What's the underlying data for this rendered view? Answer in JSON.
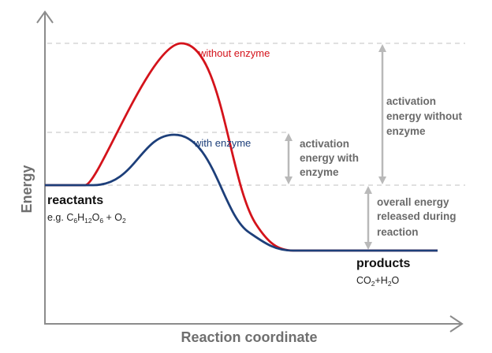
{
  "colors": {
    "without_enzyme": "#d4131b",
    "with_enzyme": "#1d3f7a",
    "axis": "#8c8c8c",
    "guide": "#d6d6d6",
    "arrow": "#b9b9b9"
  },
  "axes": {
    "y_label": "Energy",
    "x_label": "Reaction coordinate"
  },
  "curves": {
    "without_label": "without enzyme",
    "with_label": "with enzyme"
  },
  "annotations": {
    "activation_without": [
      "activation",
      "energy without",
      "enzyme"
    ],
    "activation_with": [
      "activation",
      "energy with",
      "enzyme"
    ],
    "overall": [
      "overall energy",
      "released during",
      "reaction"
    ]
  },
  "reactants": {
    "title": "reactants",
    "prefix": "e.g. C",
    "c_sub": "6",
    "h": "H",
    "h_sub": "12",
    "o": "O",
    "o_sub": "6",
    "plus": " + O",
    "o2_sub": "2"
  },
  "products": {
    "title": "products",
    "co": "CO",
    "co_sub": "2",
    "plus_h": "+H",
    "h_sub": "2",
    "o": "O"
  }
}
